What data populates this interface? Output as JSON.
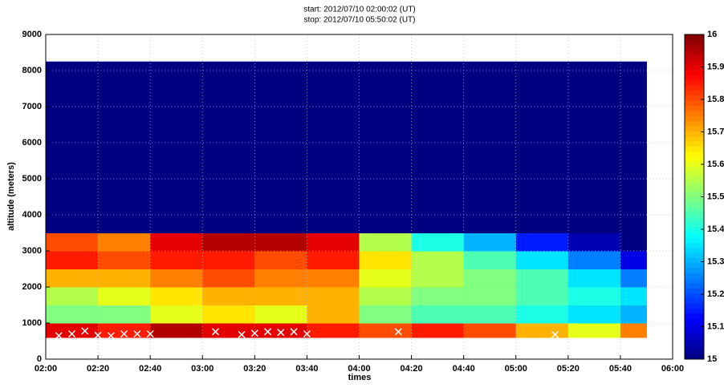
{
  "chart_data": {
    "type": "heatmap",
    "title": "start: 2012/07/10 02:00:02 (UT)",
    "subtitle": "stop: 2012/07/10 05:50:02 (UT)",
    "x_label": "times",
    "y_label": "altitude (meters)",
    "xlim": [
      2,
      6
    ],
    "xticks": [
      {
        "value": 2,
        "label": "02:00"
      },
      {
        "value": 2.3333,
        "label": "02:20"
      },
      {
        "value": 2.6667,
        "label": "02:40"
      },
      {
        "value": 3,
        "label": "03:00"
      },
      {
        "value": 3.3333,
        "label": "03:20"
      },
      {
        "value": 3.6667,
        "label": "03:40"
      },
      {
        "value": 4,
        "label": "04:00"
      },
      {
        "value": 4.3333,
        "label": "04:20"
      },
      {
        "value": 4.6667,
        "label": "04:40"
      },
      {
        "value": 5,
        "label": "05:00"
      },
      {
        "value": 5.3333,
        "label": "05:20"
      },
      {
        "value": 5.6667,
        "label": "05:40"
      },
      {
        "value": 6,
        "label": "06:00"
      }
    ],
    "ylim": [
      0,
      9000
    ],
    "yticks": [
      0,
      1000,
      2000,
      3000,
      4000,
      5000,
      6000,
      7000,
      8000,
      9000
    ],
    "grid": true,
    "x_edges": [
      2,
      2.3333,
      2.6667,
      3,
      3.3333,
      3.6667,
      4,
      4.3333,
      4.6667,
      5,
      5.3333,
      5.6667,
      5.8333
    ],
    "y_edges": [
      600,
      1000,
      1500,
      2000,
      2500,
      3000,
      3500,
      8250
    ],
    "values": [
      [
        15.9,
        15.85,
        15.95,
        15.9,
        15.9,
        15.85,
        15.8,
        15.85,
        15.8,
        15.7,
        15.6,
        15.75
      ],
      [
        15.5,
        15.5,
        15.6,
        15.65,
        15.6,
        15.7,
        15.5,
        15.45,
        15.45,
        15.4,
        15.35,
        15.3
      ],
      [
        15.55,
        15.6,
        15.65,
        15.7,
        15.7,
        15.7,
        15.55,
        15.5,
        15.5,
        15.45,
        15.4,
        15.35
      ],
      [
        15.7,
        15.7,
        15.75,
        15.8,
        15.75,
        15.75,
        15.6,
        15.55,
        15.5,
        15.45,
        15.35,
        15.25
      ],
      [
        15.85,
        15.8,
        15.85,
        15.85,
        15.8,
        15.85,
        15.65,
        15.55,
        15.45,
        15.35,
        15.25,
        15.1
      ],
      [
        15.8,
        15.75,
        15.9,
        15.95,
        15.95,
        15.9,
        15.55,
        15.4,
        15.3,
        15.15,
        15.05,
        15.0
      ],
      [
        15,
        15,
        15,
        15,
        15,
        15,
        15,
        15,
        15,
        15,
        15,
        15
      ]
    ],
    "clim": [
      15,
      16
    ],
    "cticks": [
      15,
      15.1,
      15.2,
      15.3,
      15.4,
      15.5,
      15.6,
      15.7,
      15.8,
      15.9,
      16
    ],
    "colormap": "jet",
    "markers": {
      "color": "#ffffff",
      "x": [
        2.0833,
        2.1667,
        2.25,
        2.3333,
        2.4167,
        2.5,
        2.5833,
        2.6667,
        3.0833,
        3.25,
        3.3333,
        3.4167,
        3.5,
        3.5833,
        3.6667,
        4.25,
        5.25
      ],
      "y": [
        650,
        700,
        780,
        660,
        650,
        700,
        700,
        700,
        760,
        680,
        720,
        760,
        740,
        760,
        700,
        760,
        680
      ]
    }
  }
}
